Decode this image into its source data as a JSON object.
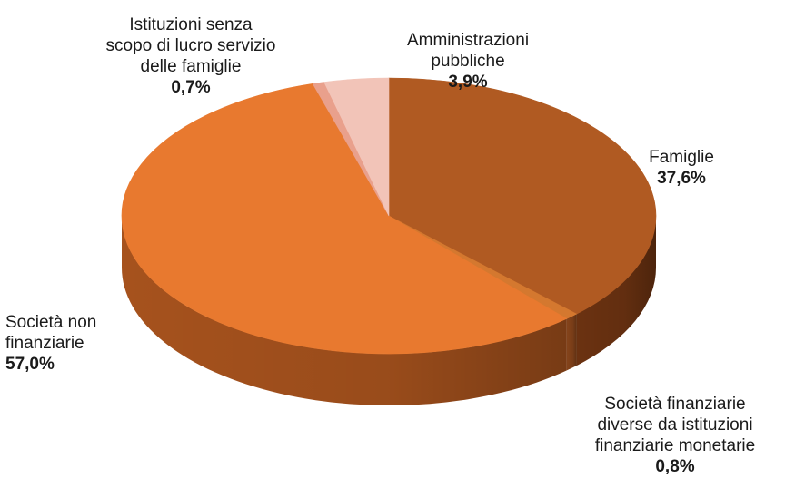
{
  "chart_data": {
    "type": "pie",
    "title": "",
    "categories": [
      "Famiglie",
      "Società finanziarie diverse da istituzioni finanziarie  monetarie",
      "Società non finanziarie",
      "Istituzioni senza scopo di lucro servizio delle famiglie",
      "Amministrazioni pubbliche"
    ],
    "values": [
      37.6,
      0.8,
      57.0,
      0.7,
      3.9
    ],
    "value_labels": [
      "37,6%",
      "0,8%",
      "57,0%",
      "0,7%",
      "3,9%"
    ],
    "colors": [
      "#b05a22",
      "#d4782f",
      "#e8792f",
      "#e9a08c",
      "#f2c4b8"
    ],
    "side_colors": [
      "#6b3211",
      "#84431a",
      "#a6521d",
      "#c88070",
      "#d8a898"
    ],
    "legend": "none",
    "style": "3d"
  }
}
